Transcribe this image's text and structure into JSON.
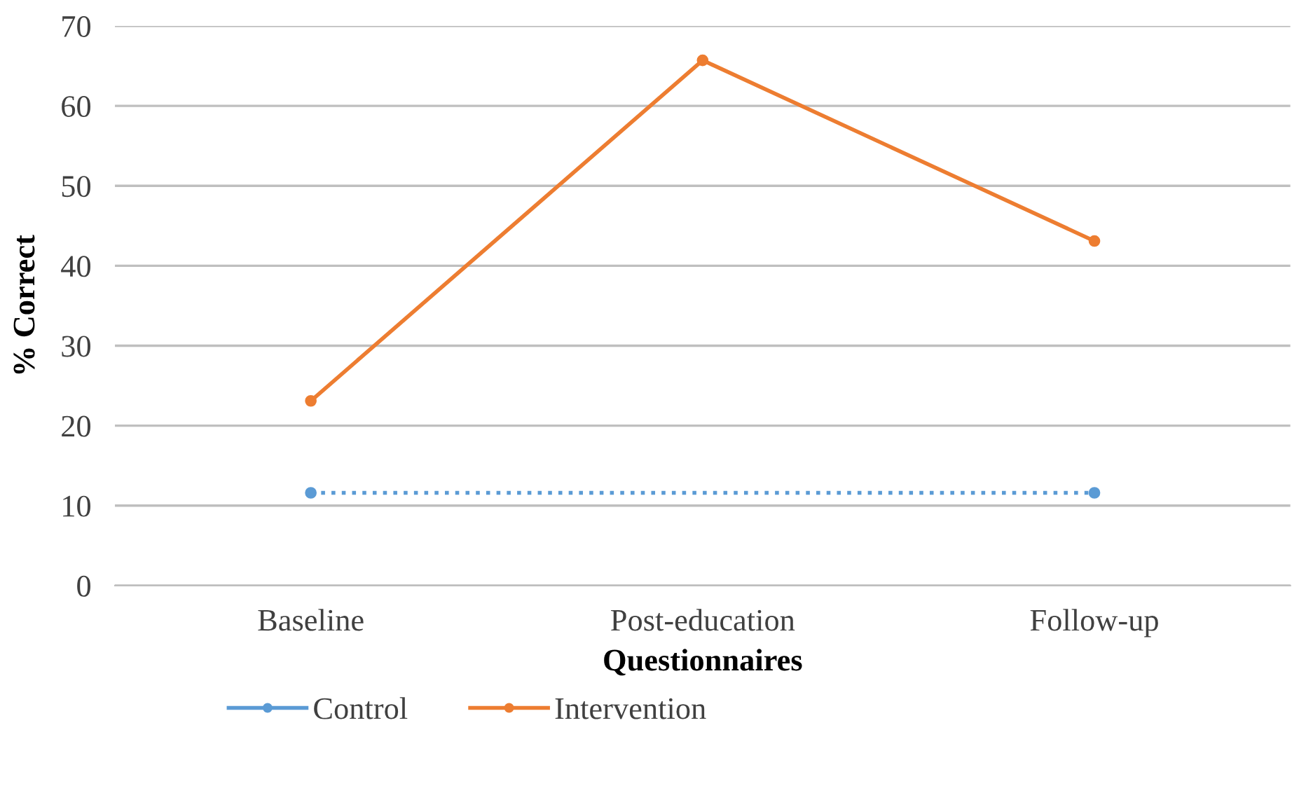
{
  "chart_data": {
    "type": "line",
    "xlabel": "Questionnaires",
    "ylabel": "% Correct",
    "categories": [
      "Baseline",
      "Post-education",
      "Follow-up"
    ],
    "series": [
      {
        "name": "Control",
        "color": "#5b9bd5",
        "values": [
          11.6,
          null,
          11.6
        ],
        "line_style": "dotted"
      },
      {
        "name": "Intervention",
        "color": "#ed7d31",
        "values": [
          23.1,
          65.7,
          43.1
        ],
        "line_style": "solid"
      }
    ],
    "ylim": [
      0,
      70
    ],
    "yticks": [
      0,
      10,
      20,
      30,
      40,
      50,
      60,
      70
    ],
    "grid": "y",
    "legend": "bottom",
    "marker": "circle"
  }
}
